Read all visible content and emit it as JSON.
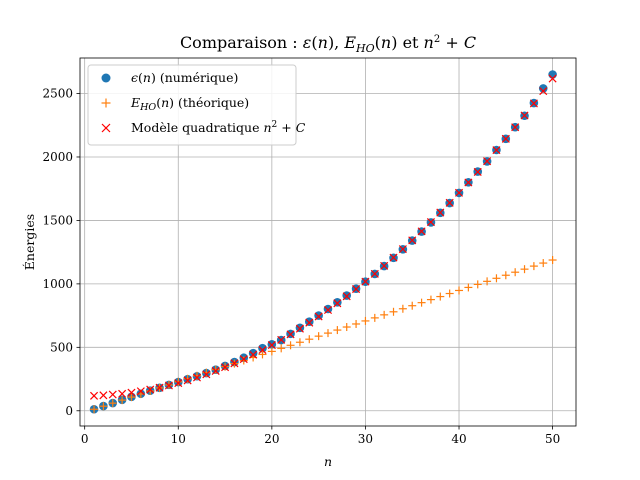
{
  "chart_data": {
    "type": "scatter",
    "title": "Comparaison : ε(n), E_HO(n) et n² + C",
    "xlabel": "n",
    "ylabel": "Énergies",
    "xlim": [
      -0.5,
      52.5
    ],
    "ylim": [
      -120,
      2780
    ],
    "x_ticks": [
      0,
      10,
      20,
      30,
      40,
      50
    ],
    "y_ticks": [
      0,
      500,
      1000,
      1500,
      2000,
      2500
    ],
    "grid": true,
    "legend_position": "top-left",
    "series": [
      {
        "name": "ϵ(n) (numérique)",
        "marker": "circle",
        "color": "#1f77b4",
        "x": [
          1,
          2,
          3,
          4,
          5,
          6,
          7,
          8,
          9,
          10,
          11,
          12,
          13,
          14,
          15,
          16,
          17,
          18,
          19,
          20,
          21,
          22,
          23,
          24,
          25,
          26,
          27,
          28,
          29,
          30,
          31,
          32,
          33,
          34,
          35,
          36,
          37,
          38,
          39,
          40,
          41,
          42,
          43,
          44,
          45,
          46,
          47,
          48,
          49,
          50
        ],
        "y": [
          12,
          37,
          61,
          86,
          110,
          134,
          158,
          181,
          204,
          226,
          249,
          272,
          297,
          324,
          353,
          384,
          418,
          454,
          493,
          524,
          557,
          606,
          654,
          702,
          750,
          802,
          855,
          908,
          962,
          1017,
          1078,
          1140,
          1205,
          1272,
          1341,
          1412,
          1484,
          1560,
          1637,
          1717,
          1800,
          1885,
          1965,
          2055,
          2143,
          2235,
          2325,
          2425,
          2540,
          2650
        ]
      },
      {
        "name": "E_HO(n) (théorique)",
        "marker": "plus",
        "color": "#ff7f0e",
        "x": [
          1,
          2,
          3,
          4,
          5,
          6,
          7,
          8,
          9,
          10,
          11,
          12,
          13,
          14,
          15,
          16,
          17,
          18,
          19,
          20,
          21,
          22,
          23,
          24,
          25,
          26,
          27,
          28,
          29,
          30,
          31,
          32,
          33,
          34,
          35,
          36,
          37,
          38,
          39,
          40,
          41,
          42,
          43,
          44,
          45,
          46,
          47,
          48,
          49,
          50
        ],
        "y": [
          12,
          36,
          60,
          84,
          108,
          132,
          156,
          180,
          204,
          228,
          252,
          276,
          300,
          324,
          348,
          372,
          396,
          420,
          444,
          468,
          492,
          516,
          540,
          564,
          588,
          612,
          636,
          660,
          684,
          708,
          732,
          756,
          780,
          804,
          828,
          852,
          876,
          900,
          924,
          948,
          972,
          996,
          1020,
          1044,
          1068,
          1092,
          1116,
          1140,
          1164,
          1188
        ]
      },
      {
        "name": "Modèle quadratique n² + C",
        "marker": "x",
        "color": "#d62728",
        "x": [
          1,
          2,
          3,
          4,
          5,
          6,
          7,
          8,
          9,
          10,
          11,
          12,
          13,
          14,
          15,
          16,
          17,
          18,
          19,
          20,
          21,
          22,
          23,
          24,
          25,
          26,
          27,
          28,
          29,
          30,
          31,
          32,
          33,
          34,
          35,
          36,
          37,
          38,
          39,
          40,
          41,
          42,
          43,
          44,
          45,
          46,
          47,
          48,
          49,
          50
        ],
        "y": [
          118,
          122,
          128,
          134,
          143,
          154,
          167,
          182,
          199,
          218,
          239,
          262,
          287,
          314,
          343,
          374,
          407,
          442,
          479,
          518,
          559,
          602,
          647,
          694,
          743,
          794,
          847,
          902,
          959,
          1018,
          1079,
          1142,
          1207,
          1274,
          1343,
          1414,
          1487,
          1562,
          1639,
          1718,
          1799,
          1882,
          1967,
          2054,
          2143,
          2234,
          2327,
          2422,
          2519,
          2618
        ]
      }
    ]
  }
}
